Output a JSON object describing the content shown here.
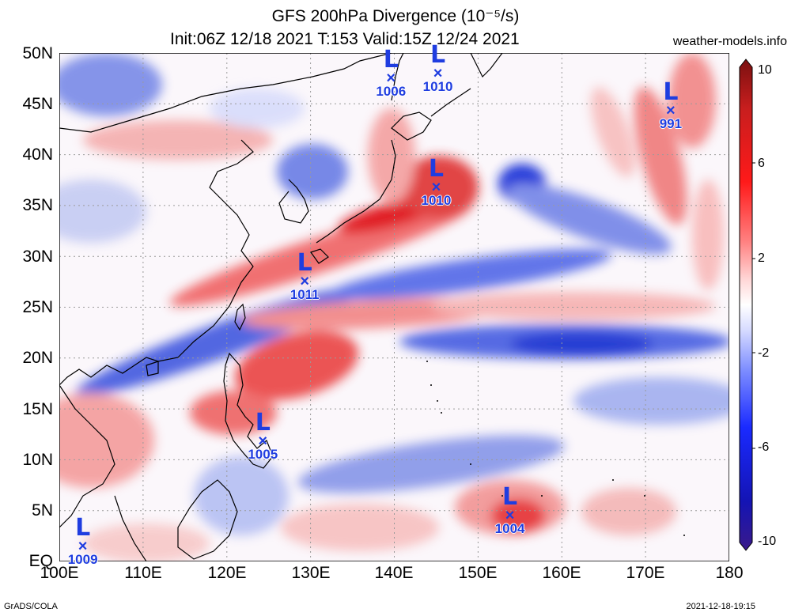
{
  "title": {
    "line1": "GFS 200hPa Divergence (10⁻⁵/s)",
    "line2": "Init:06Z 12/18 2021 T:153 Valid:15Z 12/24 2021",
    "site": "weather-models.info"
  },
  "y_axis": [
    "50N",
    "45N",
    "40N",
    "35N",
    "30N",
    "25N",
    "20N",
    "15N",
    "10N",
    "5N",
    "EQ"
  ],
  "x_axis": [
    "100E",
    "110E",
    "120E",
    "130E",
    "140E",
    "150E",
    "160E",
    "170E",
    "180"
  ],
  "colorbar": {
    "labels": [
      "10",
      "6",
      "2",
      "-2",
      "-6",
      "-10"
    ],
    "colors": [
      "#7a1010",
      "#c81e1e",
      "#ff1a1a",
      "#ff8080",
      "#ffd8d8",
      "#ffffff",
      "#d8dcff",
      "#8090ff",
      "#1a2aff",
      "#1414b4",
      "#3a1a8a"
    ]
  },
  "lows": [
    {
      "pressure": "1006",
      "lon": 139.6,
      "lat": 47.5
    },
    {
      "pressure": "1010",
      "lon": 145.2,
      "lat": 48.0
    },
    {
      "pressure": "991",
      "lon": 173.0,
      "lat": 44.3
    },
    {
      "pressure": "1010",
      "lon": 145.0,
      "lat": 36.8
    },
    {
      "pressure": "1011",
      "lon": 129.3,
      "lat": 27.5
    },
    {
      "pressure": "1005",
      "lon": 124.3,
      "lat": 11.8
    },
    {
      "pressure": "1004",
      "lon": 153.8,
      "lat": 4.5
    },
    {
      "pressure": "1009",
      "lon": 102.8,
      "lat": 1.5
    }
  ],
  "footer": {
    "left": "GrADS/COLA",
    "right": "2021-12-18-19:15"
  }
}
